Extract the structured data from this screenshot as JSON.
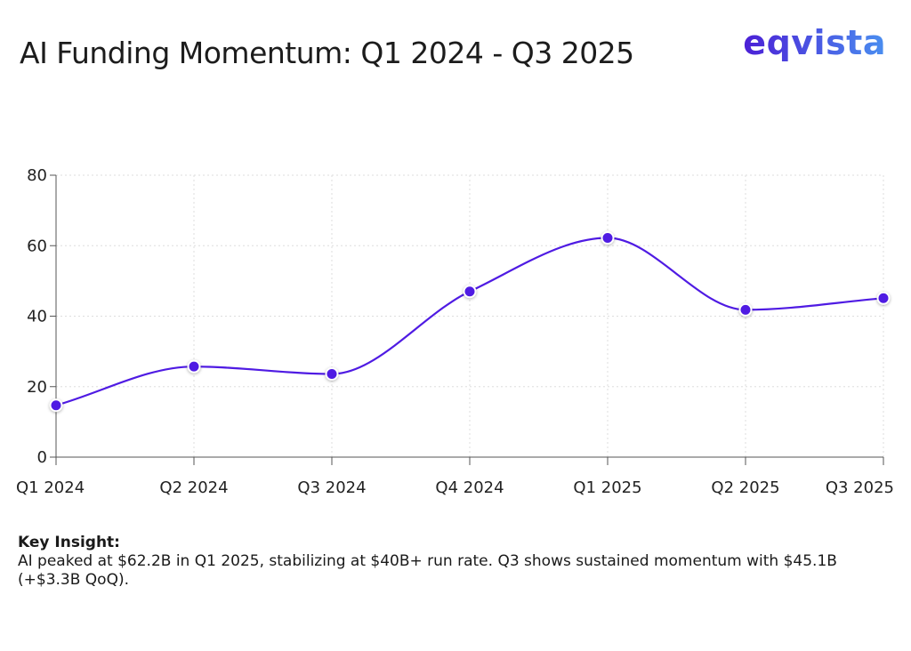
{
  "title": "AI Funding Momentum: Q1 2024 - Q3 2025",
  "logo": "eqvista",
  "insight": {
    "title": "Key Insight:",
    "text": "AI peaked at $62.2B in Q1 2025, stabilizing at $40B+ run rate. Q3 shows sustained momentum with $45.1B (+$3.3B QoQ)."
  },
  "chart_data": {
    "type": "line",
    "title": "AI Funding Momentum: Q1 2024 - Q3 2025",
    "xlabel": "",
    "ylabel": "",
    "categories": [
      "Q1 2024",
      "Q2 2024",
      "Q3 2024",
      "Q4 2024",
      "Q1 2025",
      "Q2 2025",
      "Q3 2025"
    ],
    "series": [
      {
        "values": [
          14.7,
          25.7,
          23.6,
          47.0,
          62.2,
          41.8,
          45.1
        ],
        "color": "#4f1be3"
      }
    ],
    "ylim": [
      0,
      80
    ],
    "yticks": [
      "0",
      "20",
      "40",
      "60",
      "80"
    ],
    "grid": true,
    "legend": "none",
    "curve": "smooth"
  }
}
